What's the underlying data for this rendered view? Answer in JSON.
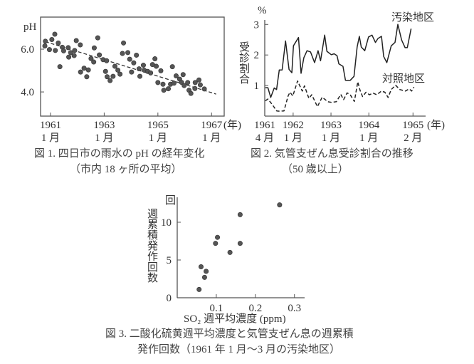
{
  "chart_data": [
    {
      "id": "fig1",
      "type": "scatter",
      "title": "図 1.  四日市の雨水の pH の経年変化",
      "subtitle": "（市内 18 ヶ所の平均）",
      "ylabel": "pH",
      "xunit": "(年)",
      "xlim": [
        1960.63,
        1967.47
      ],
      "ylim": [
        2.87,
        7.5
      ],
      "yticks": [
        {
          "v": 6.0,
          "label": "6.0"
        },
        {
          "v": 4.0,
          "label": "4.0"
        }
      ],
      "xticks": [
        {
          "v": 1961,
          "label": "1961",
          "sub": "1 月"
        },
        {
          "v": 1963,
          "label": "1963",
          "sub": "1 月"
        },
        {
          "v": 1965,
          "label": "1965",
          "sub": "1 月"
        },
        {
          "v": 1967,
          "label": "1967",
          "sub": "1 月"
        }
      ],
      "points": [
        [
          1960.81,
          6.37
        ],
        [
          1960.79,
          6.15
        ],
        [
          1960.96,
          5.98
        ],
        [
          1961.05,
          6.45
        ],
        [
          1961.16,
          6.7
        ],
        [
          1961.18,
          5.94
        ],
        [
          1961.29,
          6.29
        ],
        [
          1961.35,
          5.18
        ],
        [
          1961.44,
          6.09
        ],
        [
          1961.49,
          5.92
        ],
        [
          1961.66,
          6.07
        ],
        [
          1961.68,
          5.63
        ],
        [
          1961.75,
          5.84
        ],
        [
          1961.88,
          5.7
        ],
        [
          1961.9,
          5.94
        ],
        [
          1961.96,
          6.4
        ],
        [
          1962.11,
          6.2
        ],
        [
          1962.12,
          4.93
        ],
        [
          1962.25,
          5.11
        ],
        [
          1962.35,
          4.71
        ],
        [
          1962.41,
          5.03
        ],
        [
          1962.51,
          5.56
        ],
        [
          1962.61,
          5.4
        ],
        [
          1962.63,
          6.06
        ],
        [
          1962.76,
          6.53
        ],
        [
          1962.82,
          5.73
        ],
        [
          1962.96,
          5.51
        ],
        [
          1963.09,
          5.46
        ],
        [
          1963.05,
          4.96
        ],
        [
          1963.11,
          4.71
        ],
        [
          1963.22,
          4.53
        ],
        [
          1963.33,
          4.73
        ],
        [
          1963.4,
          5.2
        ],
        [
          1963.51,
          5.02
        ],
        [
          1963.59,
          4.83
        ],
        [
          1963.68,
          5.8
        ],
        [
          1963.72,
          6.29
        ],
        [
          1963.88,
          5.84
        ],
        [
          1963.95,
          5.53
        ],
        [
          1964.02,
          4.93
        ],
        [
          1964.1,
          5.36
        ],
        [
          1964.2,
          5.72
        ],
        [
          1964.3,
          5.08
        ],
        [
          1964.33,
          4.73
        ],
        [
          1964.46,
          5.25
        ],
        [
          1964.49,
          5.02
        ],
        [
          1964.62,
          4.96
        ],
        [
          1964.73,
          4.89
        ],
        [
          1964.8,
          5.28
        ],
        [
          1964.89,
          5.55
        ],
        [
          1964.94,
          5.2
        ],
        [
          1965.0,
          4.44
        ],
        [
          1965.11,
          4.99
        ],
        [
          1965.19,
          4.36
        ],
        [
          1965.22,
          4.08
        ],
        [
          1965.39,
          4.15
        ],
        [
          1965.47,
          4.36
        ],
        [
          1965.54,
          5.18
        ],
        [
          1965.6,
          4.41
        ],
        [
          1965.68,
          4.75
        ],
        [
          1965.81,
          4.6
        ],
        [
          1965.88,
          4.45
        ],
        [
          1965.94,
          4.81
        ],
        [
          1965.98,
          4.3
        ],
        [
          1966.11,
          4.44
        ],
        [
          1966.16,
          4.08
        ],
        [
          1966.23,
          3.93
        ],
        [
          1966.38,
          4.16
        ],
        [
          1966.39,
          4.44
        ],
        [
          1966.53,
          4.56
        ],
        [
          1966.58,
          4.33
        ],
        [
          1966.73,
          4.14
        ]
      ],
      "trend": [
        [
          1960.81,
          6.35
        ],
        [
          1967.17,
          3.9
        ]
      ]
    },
    {
      "id": "fig2",
      "type": "line",
      "title": "図 2.  気管支ぜん息受診割合の推移",
      "subtitle": "（50 歳以上）",
      "ylabel": "受診割合",
      "yunit": "%",
      "xunit": "(年)",
      "x_description": "months since 1961-04",
      "xlim": [
        0,
        51
      ],
      "ylim": [
        0,
        3.1
      ],
      "yticks": [
        {
          "v": 1,
          "label": "1"
        },
        {
          "v": 2,
          "label": "2"
        },
        {
          "v": 3,
          "label": "3"
        }
      ],
      "xticks": [
        {
          "v": 0,
          "label": "1961",
          "sub": "4 月"
        },
        {
          "v": 9,
          "label": "1962",
          "sub": "1 月"
        },
        {
          "v": 21,
          "label": "1963",
          "sub": "1 月"
        },
        {
          "v": 33,
          "label": "1964",
          "sub": "1 月"
        },
        {
          "v": 47,
          "label": "1965",
          "sub": "2 月"
        }
      ],
      "series": [
        {
          "name": "汚染地区",
          "style": "solid",
          "points": [
            [
              0.2,
              0.93
            ],
            [
              1.0,
              0.93
            ],
            [
              1.9,
              0.61
            ],
            [
              3.0,
              0.92
            ],
            [
              3.75,
              0.87
            ],
            [
              4.6,
              1.51
            ],
            [
              5.5,
              1.51
            ],
            [
              6.6,
              2.46
            ],
            [
              7.7,
              1.53
            ],
            [
              8.6,
              1.42
            ],
            [
              9.1,
              2.3
            ],
            [
              10.7,
              2.57
            ],
            [
              11.5,
              1.4
            ],
            [
              12.4,
              1.91
            ],
            [
              13.4,
              2.14
            ],
            [
              14.5,
              2.1
            ],
            [
              15.8,
              1.75
            ],
            [
              16.9,
              2.14
            ],
            [
              17.7,
              1.81
            ],
            [
              19.0,
              2.65
            ],
            [
              19.7,
              2.12
            ],
            [
              21.1,
              2.01
            ],
            [
              22.0,
              2.04
            ],
            [
              22.9,
              1.98
            ],
            [
              23.5,
              1.71
            ],
            [
              24.8,
              1.63
            ],
            [
              25.6,
              1.17
            ],
            [
              27.1,
              1.17
            ],
            [
              28.3,
              1.3
            ],
            [
              29.3,
              2.26
            ],
            [
              30.0,
              2.61
            ],
            [
              30.6,
              2.26
            ],
            [
              31.7,
              2.14
            ],
            [
              32.9,
              2.59
            ],
            [
              34.0,
              2.65
            ],
            [
              35.1,
              2.41
            ],
            [
              35.9,
              2.54
            ],
            [
              37.0,
              2.61
            ],
            [
              37.7,
              1.95
            ],
            [
              38.7,
              1.75
            ],
            [
              40.1,
              2.3
            ],
            [
              41.3,
              2.41
            ],
            [
              42.2,
              3.0
            ],
            [
              43.4,
              2.49
            ],
            [
              44.5,
              2.24
            ],
            [
              45.2,
              2.24
            ],
            [
              46.4,
              2.86
            ]
          ]
        },
        {
          "name": "対照地区",
          "style": "dashed",
          "points": [
            [
              0.2,
              0.5
            ],
            [
              1.0,
              0.56
            ],
            [
              2.3,
              0.39
            ],
            [
              3.8,
              0.17
            ],
            [
              4.7,
              0.16
            ],
            [
              6.1,
              0.17
            ],
            [
              7.4,
              0.66
            ],
            [
              8.0,
              0.78
            ],
            [
              8.9,
              0.66
            ],
            [
              10.4,
              1.15
            ],
            [
              11.9,
              0.82
            ],
            [
              12.6,
              0.99
            ],
            [
              14.0,
              0.58
            ],
            [
              14.9,
              0.7
            ],
            [
              16.7,
              0.31
            ],
            [
              18.2,
              0.62
            ],
            [
              20.0,
              0.47
            ],
            [
              21.2,
              0.45
            ],
            [
              22.7,
              0.47
            ],
            [
              24.1,
              0.71
            ],
            [
              25.0,
              0.54
            ],
            [
              26.1,
              0.76
            ],
            [
              27.1,
              0.7
            ],
            [
              28.4,
              0.48
            ],
            [
              29.5,
              1.12
            ],
            [
              30.2,
              0.85
            ],
            [
              31.0,
              0.64
            ],
            [
              32.1,
              0.78
            ],
            [
              33.2,
              0.7
            ],
            [
              34.4,
              0.75
            ],
            [
              35.5,
              0.7
            ],
            [
              37.0,
              0.82
            ],
            [
              38.1,
              0.78
            ],
            [
              39.1,
              0.61
            ],
            [
              40.1,
              0.87
            ],
            [
              41.5,
              1.01
            ],
            [
              42.8,
              0.87
            ],
            [
              44.6,
              0.82
            ],
            [
              45.8,
              0.89
            ],
            [
              46.6,
              0.82
            ],
            [
              47.3,
              0.95
            ]
          ]
        }
      ]
    },
    {
      "id": "fig3",
      "type": "scatter",
      "title": "図 3.  二酸化硫黄週平均濃度と気管支ぜん息の週累積",
      "subtitle": "発作回数（1961 年 1 月～3 月の汚染地区）",
      "ylabel": "週累積発作回数",
      "yunit": "回",
      "xlabel": "SO₂ 週平均濃度 (ppm)",
      "xlim": [
        0,
        0.326
      ],
      "ylim": [
        0,
        13.3
      ],
      "yticks": [
        {
          "v": 0,
          "label": "0"
        },
        {
          "v": 5,
          "label": "5"
        },
        {
          "v": 10,
          "label": "10"
        }
      ],
      "xticks": [
        {
          "v": 0.1,
          "label": "0.1"
        },
        {
          "v": 0.2,
          "label": "0.2"
        },
        {
          "v": 0.3,
          "label": "0.3"
        }
      ],
      "points": [
        [
          0.056,
          1.1
        ],
        [
          0.061,
          4.1
        ],
        [
          0.07,
          2.7
        ],
        [
          0.074,
          3.5
        ],
        [
          0.098,
          7.2
        ],
        [
          0.103,
          8.0
        ],
        [
          0.135,
          6.0
        ],
        [
          0.161,
          11.0
        ],
        [
          0.161,
          7.2
        ],
        [
          0.262,
          12.3
        ]
      ]
    }
  ]
}
